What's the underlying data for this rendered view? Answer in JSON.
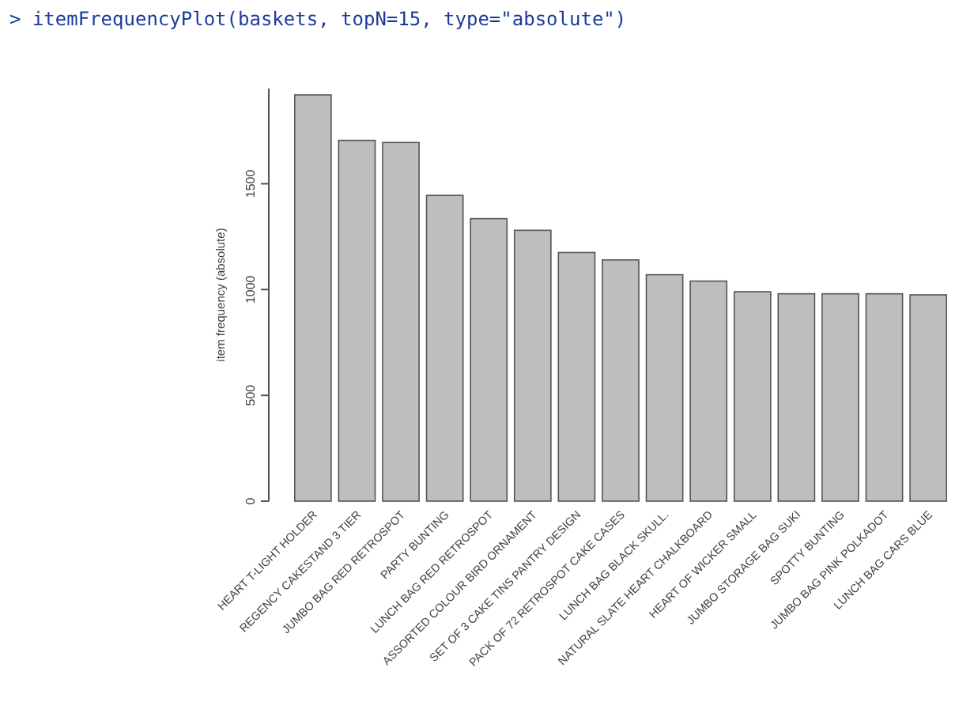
{
  "chart_data": {
    "type": "bar",
    "title": "> itemFrequencyPlot(baskets, topN=15, type=\"absolute\")",
    "ylabel": "item frequency (absolute)",
    "categories": [
      "HEART T-LIGHT HOLDER",
      "REGENCY CAKESTAND 3 TIER",
      "JUMBO BAG RED RETROSPOT",
      "PARTY BUNTING",
      "LUNCH BAG RED RETROSPOT",
      "ASSORTED COLOUR BIRD ORNAMENT",
      "SET OF 3 CAKE TINS PANTRY DESIGN",
      "PACK OF 72 RETROSPOT CAKE CASES",
      "LUNCH BAG  BLACK SKULL.",
      "NATURAL SLATE HEART CHALKBOARD",
      "HEART OF WICKER SMALL",
      "JUMBO STORAGE BAG SUKI",
      "SPOTTY BUNTING",
      "JUMBO BAG PINK POLKADOT",
      "LUNCH BAG CARS BLUE"
    ],
    "values": [
      1920,
      1705,
      1695,
      1445,
      1335,
      1280,
      1175,
      1140,
      1070,
      1040,
      990,
      980,
      980,
      980,
      975
    ],
    "color": "#bebebe",
    "ylim": [
      0,
      1950
    ],
    "yticks": [
      0,
      500,
      1000,
      1500
    ]
  }
}
